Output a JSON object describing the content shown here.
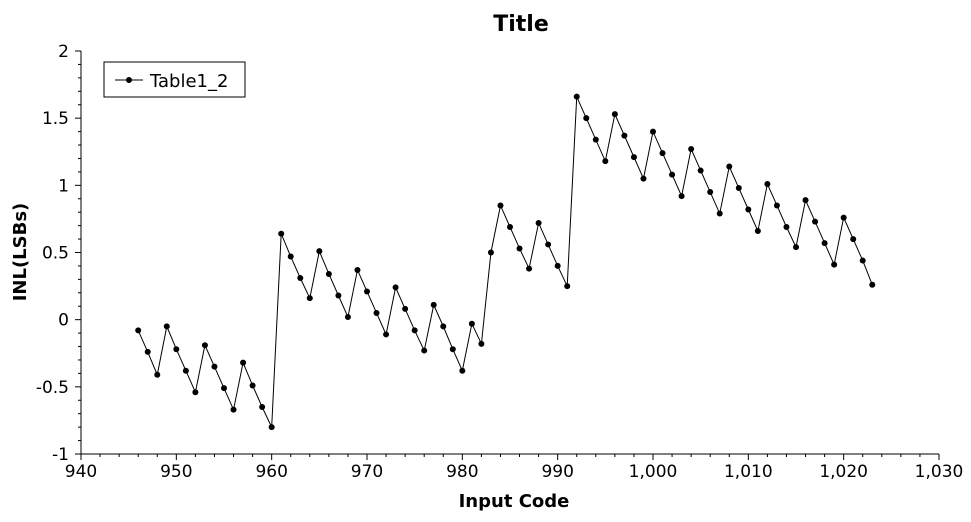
{
  "chart_data": {
    "type": "line",
    "title": "Title",
    "xlabel": "Input Code",
    "ylabel": "INL(LSBs)",
    "xlim": [
      940,
      1030
    ],
    "ylim": [
      -1,
      2
    ],
    "x_ticks": [
      940,
      950,
      960,
      970,
      980,
      990,
      1000,
      1010,
      1020,
      1030
    ],
    "x_tick_labels": [
      "940",
      "950",
      "960",
      "970",
      "980",
      "990",
      "1,000",
      "1,010",
      "1,020",
      "1,030"
    ],
    "y_ticks": [
      -1,
      -0.5,
      0,
      0.5,
      1,
      1.5,
      2
    ],
    "y_tick_labels": [
      "-1",
      "-0.5",
      "0",
      "0.5",
      "1",
      "1.5",
      "2"
    ],
    "grid": false,
    "legend_position": "top-left",
    "series": [
      {
        "name": "Table1_2",
        "color": "#000000",
        "marker": "circle",
        "x": [
          946,
          947,
          948,
          949,
          950,
          951,
          952,
          953,
          954,
          955,
          956,
          957,
          958,
          959,
          960,
          961,
          962,
          963,
          964,
          965,
          966,
          967,
          968,
          969,
          970,
          971,
          972,
          973,
          974,
          975,
          976,
          977,
          978,
          979,
          980,
          981,
          982,
          983,
          984,
          985,
          986,
          987,
          988,
          989,
          990,
          991,
          992,
          993,
          994,
          995,
          996,
          997,
          998,
          999,
          1000,
          1001,
          1002,
          1003,
          1004,
          1005,
          1006,
          1007,
          1008,
          1009,
          1010,
          1011,
          1012,
          1013,
          1014,
          1015,
          1016,
          1017,
          1018,
          1019,
          1020,
          1021,
          1022,
          1023
        ],
        "y": [
          -0.08,
          -0.24,
          -0.41,
          -0.05,
          -0.22,
          -0.38,
          -0.54,
          -0.19,
          -0.35,
          -0.51,
          -0.67,
          -0.32,
          -0.49,
          -0.65,
          -0.8,
          0.64,
          0.47,
          0.31,
          0.16,
          0.51,
          0.34,
          0.18,
          0.02,
          0.37,
          0.21,
          0.05,
          -0.11,
          0.24,
          0.08,
          -0.08,
          -0.23,
          0.11,
          -0.05,
          -0.22,
          -0.38,
          -0.03,
          -0.18,
          0.5,
          0.85,
          0.69,
          0.53,
          0.38,
          0.72,
          0.56,
          0.4,
          0.25,
          1.66,
          1.5,
          1.34,
          1.18,
          1.53,
          1.37,
          1.21,
          1.05,
          1.4,
          1.24,
          1.08,
          0.92,
          1.27,
          1.11,
          0.95,
          0.79,
          1.14,
          0.98,
          0.82,
          0.66,
          1.01,
          0.85,
          0.69,
          0.54,
          0.89,
          0.73,
          0.57,
          0.41,
          0.76,
          0.6,
          0.44,
          0.26
        ]
      }
    ]
  }
}
